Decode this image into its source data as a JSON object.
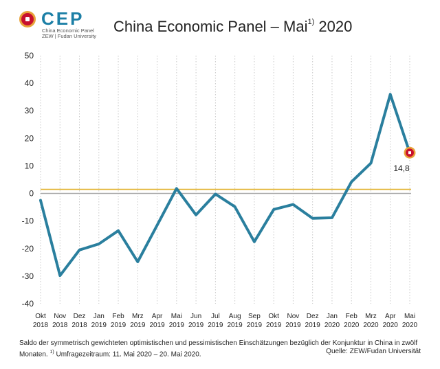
{
  "header": {
    "logo_word": "CEP",
    "logo_sub1": "China Economic Panel",
    "logo_sub2": "ZEW | Fudan University",
    "title_main": "China Economic Panel – Mai",
    "title_sup": "1)",
    "title_year": "2020"
  },
  "footer": {
    "note_line1": "Saldo der symmetrisch gewichteten optimistischen und pessimistischen Einschätzungen bezüglich der Konjunktur in China in zwölf",
    "note_line2a": "Monaten. ",
    "note_sup": "1)",
    "note_line2b": " Umfragezeitraum: 11. Mai 2020 – 20. Mai 2020.",
    "source": "Quelle: ZEW/Fudan Universität"
  },
  "colors": {
    "line": "#2a7f9e",
    "reference": "#e2b12d",
    "zero": "#aaaaaa",
    "marker_fill": "#c8102e",
    "marker_ring": "#e8a33a"
  },
  "chart_data": {
    "type": "line",
    "categories": [
      [
        "Okt",
        "2018"
      ],
      [
        "Nov",
        "2018"
      ],
      [
        "Dez",
        "2018"
      ],
      [
        "Jan",
        "2019"
      ],
      [
        "Feb",
        "2019"
      ],
      [
        "Mrz",
        "2019"
      ],
      [
        "Apr",
        "2019"
      ],
      [
        "Mai",
        "2019"
      ],
      [
        "Jun",
        "2019"
      ],
      [
        "Jul",
        "2019"
      ],
      [
        "Aug",
        "2019"
      ],
      [
        "Sep",
        "2019"
      ],
      [
        "Okt",
        "2019"
      ],
      [
        "Nov",
        "2019"
      ],
      [
        "Dez",
        "2019"
      ],
      [
        "Jan",
        "2020"
      ],
      [
        "Feb",
        "2020"
      ],
      [
        "Mrz",
        "2020"
      ],
      [
        "Apr",
        "2020"
      ],
      [
        "Mai",
        "2020"
      ]
    ],
    "values": [
      -2.5,
      -29.8,
      -20.5,
      -18.3,
      -13.5,
      -24.8,
      -11.5,
      1.8,
      -7.8,
      -0.2,
      -4.8,
      -17.5,
      -5.8,
      -4.0,
      -9.0,
      -8.8,
      4.2,
      11.0,
      36.0,
      14.8
    ],
    "reference_value": 1.5,
    "ylim": [
      -40,
      50
    ],
    "yticks": [
      -40,
      -30,
      -20,
      -10,
      0,
      10,
      20,
      30,
      40,
      50
    ],
    "last_label": "14,8",
    "grid": "vertical dotted"
  }
}
